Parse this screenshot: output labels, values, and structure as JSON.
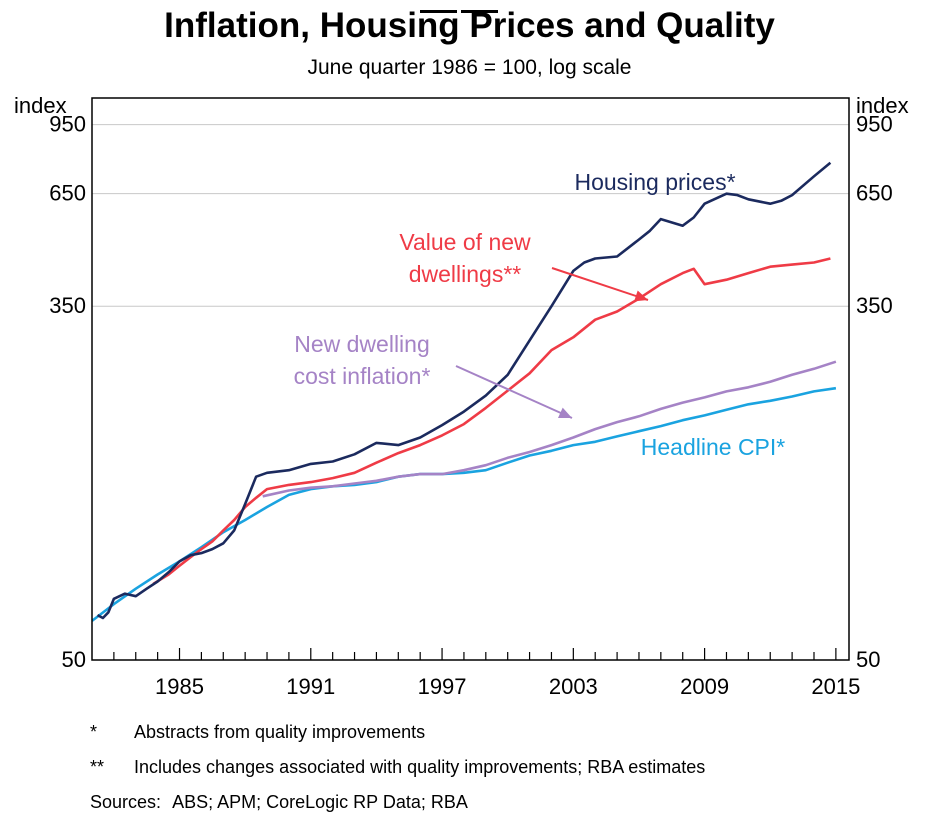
{
  "chart_data": {
    "type": "line",
    "title": "Inflation, Housing Prices and Quality",
    "subtitle": "June quarter 1986 = 100, log scale",
    "y_unit_left": "index",
    "y_unit_right": "index",
    "y_scale": "log",
    "ylim": [
      50,
      1100
    ],
    "xlim": [
      1981.0,
      2015.6
    ],
    "yticks": [
      50,
      350,
      650,
      950
    ],
    "xtick_labels": [
      "1985",
      "1991",
      "1997",
      "2003",
      "2009",
      "2015"
    ],
    "xtick_values": [
      1985,
      1991,
      1997,
      2003,
      2009,
      2015
    ],
    "legend": "inline labels",
    "grid": "horizontal at 350, 650, 950",
    "series": [
      {
        "name": "Housing prices*",
        "color": "#1b2a5e",
        "x": [
          1981.25,
          1981.5,
          1981.75,
          1982.0,
          1982.5,
          1983.0,
          1983.5,
          1984.0,
          1984.5,
          1985.0,
          1985.5,
          1986.0,
          1986.5,
          1987.0,
          1987.5,
          1988.0,
          1988.5,
          1989.0,
          1990.0,
          1991.0,
          1992.0,
          1993.0,
          1994.0,
          1995.0,
          1996.0,
          1997.0,
          1998.0,
          1999.0,
          2000.0,
          2001.0,
          2002.0,
          2003.0,
          2003.5,
          2004.0,
          2005.0,
          2006.0,
          2006.5,
          2007.0,
          2008.0,
          2008.5,
          2009.0,
          2010.0,
          2010.5,
          2011.0,
          2012.0,
          2012.5,
          2013.0,
          2014.0,
          2014.75
        ],
        "values": [
          64,
          63,
          65,
          70,
          72,
          71,
          74,
          77,
          81,
          86,
          89,
          90,
          92,
          95,
          102,
          118,
          137,
          140,
          142,
          147,
          149,
          155,
          165,
          163,
          170,
          182,
          196,
          214,
          240,
          290,
          350,
          425,
          445,
          455,
          460,
          505,
          530,
          565,
          545,
          570,
          615,
          650,
          645,
          630,
          615,
          625,
          645,
          715,
          770
        ]
      },
      {
        "name": "Value of new dwellings**",
        "color": "#ef3b46",
        "x": [
          1983.8,
          1984.5,
          1985.0,
          1985.5,
          1986.0,
          1986.5,
          1987.0,
          1987.5,
          1988.0,
          1988.5,
          1989.0,
          1990.0,
          1991.0,
          1992.0,
          1993.0,
          1994.0,
          1995.0,
          1996.0,
          1997.0,
          1998.0,
          1999.0,
          2000.0,
          2001.0,
          2002.0,
          2003.0,
          2004.0,
          2005.0,
          2006.0,
          2007.0,
          2008.0,
          2008.5,
          2009.0,
          2010.0,
          2011.0,
          2012.0,
          2013.0,
          2014.0,
          2014.75
        ],
        "values": [
          76,
          80,
          84,
          88,
          92,
          96,
          102,
          108,
          116,
          122,
          128,
          131,
          133,
          136,
          140,
          148,
          156,
          163,
          172,
          183,
          200,
          220,
          242,
          275,
          295,
          325,
          340,
          365,
          395,
          420,
          430,
          395,
          405,
          420,
          435,
          440,
          445,
          455
        ]
      },
      {
        "name": "New dwelling cost inflation*",
        "color": "#a583c6",
        "x": [
          1988.8,
          1990.0,
          1991.0,
          1992.0,
          1993.0,
          1994.0,
          1995.0,
          1996.0,
          1997.0,
          1998.0,
          1999.0,
          2000.0,
          2001.0,
          2002.0,
          2003.0,
          2004.0,
          2005.0,
          2006.0,
          2007.0,
          2008.0,
          2009.0,
          2010.0,
          2011.0,
          2012.0,
          2013.0,
          2014.0,
          2015.0
        ],
        "values": [
          123,
          127,
          129,
          130,
          132,
          134,
          137,
          139,
          139,
          142,
          146,
          152,
          157,
          163,
          170,
          178,
          185,
          191,
          199,
          206,
          212,
          219,
          224,
          231,
          240,
          248,
          258
        ]
      },
      {
        "name": "Headline CPI*",
        "color": "#1aa3e0",
        "x": [
          1981.0,
          1982.0,
          1983.0,
          1984.0,
          1985.0,
          1986.0,
          1987.0,
          1988.0,
          1989.0,
          1990.0,
          1991.0,
          1992.0,
          1993.0,
          1994.0,
          1995.0,
          1996.0,
          1997.0,
          1998.0,
          1999.0,
          2000.0,
          2001.0,
          2002.0,
          2003.0,
          2004.0,
          2005.0,
          2006.0,
          2007.0,
          2008.0,
          2009.0,
          2010.0,
          2011.0,
          2012.0,
          2013.0,
          2014.0,
          2015.0
        ],
        "values": [
          62,
          68,
          74,
          80,
          86,
          93,
          101,
          108,
          116,
          124,
          128,
          130,
          131,
          133,
          137,
          139,
          139,
          140,
          142,
          148,
          154,
          158,
          163,
          166,
          171,
          176,
          181,
          187,
          192,
          198,
          204,
          208,
          213,
          219,
          223
        ]
      }
    ],
    "annotations": [
      {
        "id": "housing",
        "lines": [
          "Housing prices*"
        ],
        "color": "#1b2a5e"
      },
      {
        "id": "value",
        "lines": [
          "Value of new",
          "dwellings**"
        ],
        "color": "#ef3b46"
      },
      {
        "id": "cost",
        "lines": [
          "New dwelling",
          "cost inflation*"
        ],
        "color": "#a583c6"
      },
      {
        "id": "cpi",
        "lines": [
          "Headline CPI*"
        ],
        "color": "#1aa3e0"
      }
    ]
  },
  "footnotes": [
    {
      "mark": "*",
      "text": "Abstracts from quality improvements"
    },
    {
      "mark": "**",
      "text": "Includes changes associated with quality improvements; RBA estimates"
    }
  ],
  "sources": {
    "label": "Sources:",
    "text": "ABS; APM; CoreLogic RP Data; RBA"
  }
}
